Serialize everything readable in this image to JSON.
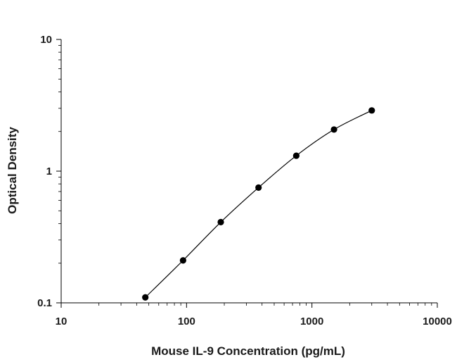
{
  "chart_data": {
    "type": "scatter",
    "title": "",
    "xlabel": "Mouse IL-9 Concentration (pg/mL)",
    "ylabel": "Optical Density",
    "x_scale": "log",
    "y_scale": "log",
    "xlim": [
      10,
      10000
    ],
    "ylim": [
      0.1,
      10
    ],
    "x_ticks": [
      10,
      100,
      1000,
      10000
    ],
    "x_tick_labels": [
      "10",
      "100",
      "1000",
      "10000"
    ],
    "y_ticks": [
      0.1,
      1,
      10
    ],
    "y_tick_labels": [
      "0.1",
      "1",
      "10"
    ],
    "grid": false,
    "legend": "none",
    "fit_curve": true,
    "series": [
      {
        "x": [
          46.9,
          93.8,
          187.5,
          375,
          750,
          1500,
          3000
        ],
        "y": [
          0.11,
          0.21,
          0.41,
          0.75,
          1.31,
          2.07,
          2.89
        ]
      }
    ]
  }
}
